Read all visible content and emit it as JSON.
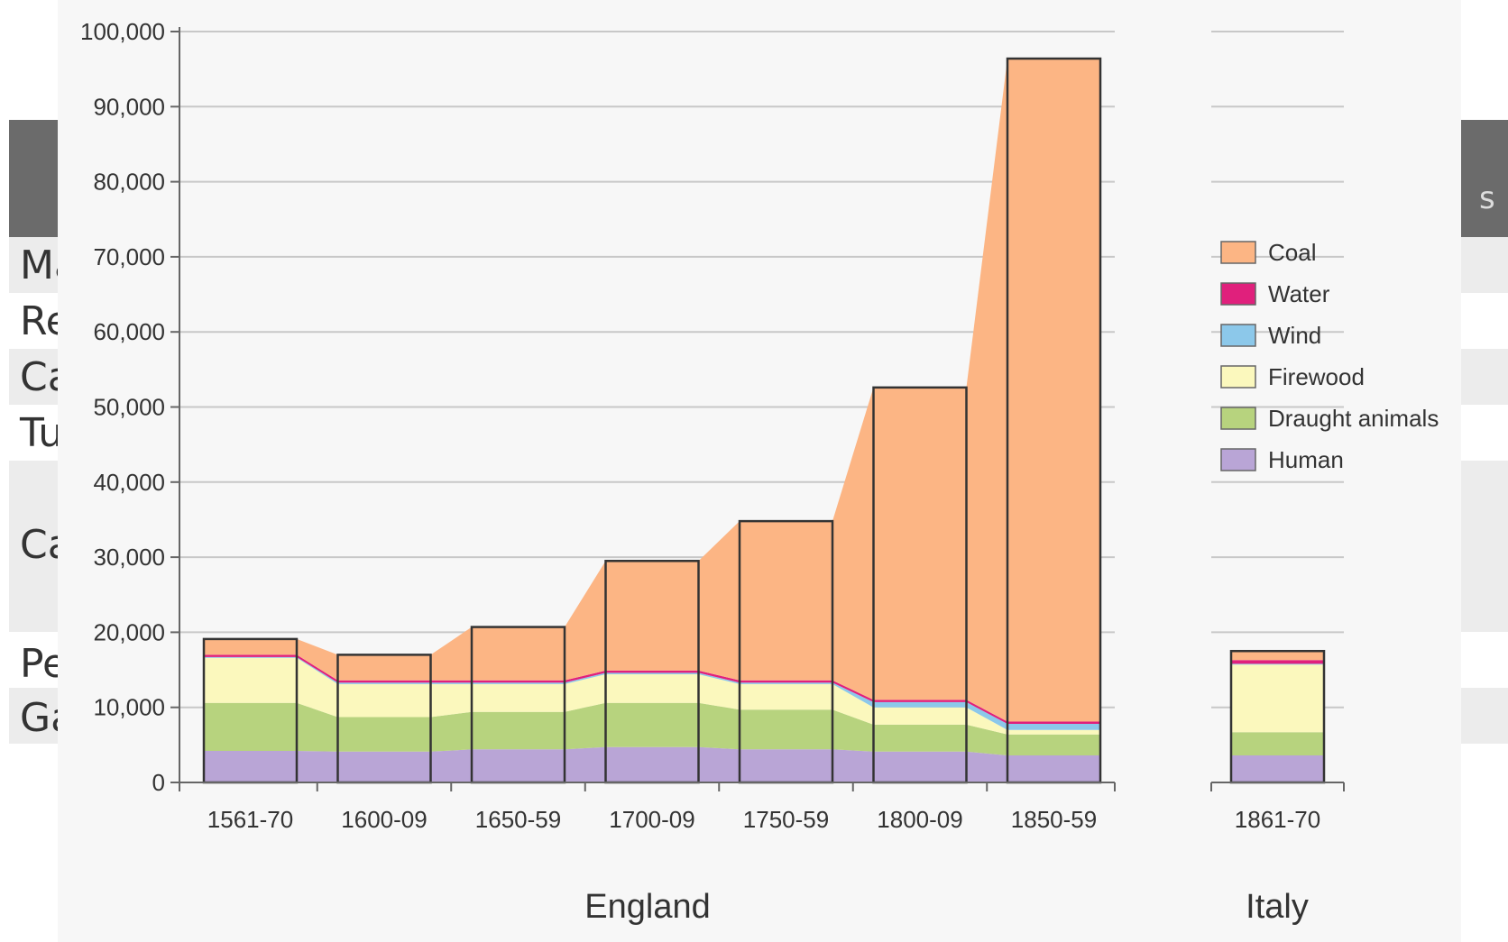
{
  "background_table": {
    "row_labels": [
      "Ma",
      "Re",
      "Ca",
      "Tu",
      "Ca",
      "Pe",
      "Ga"
    ],
    "header_fragment": "s"
  },
  "chart_data": {
    "type": "area",
    "title": "",
    "xlabel": "",
    "ylabel": "",
    "ylim": [
      0,
      100000
    ],
    "y_ticks": [
      0,
      10000,
      20000,
      30000,
      40000,
      50000,
      60000,
      70000,
      80000,
      90000,
      100000
    ],
    "y_tick_labels": [
      "0",
      "10,000",
      "20,000",
      "30,000",
      "40,000",
      "50,000",
      "60,000",
      "70,000",
      "80,000",
      "90,000",
      "100,000"
    ],
    "grid": true,
    "legend_position": "right",
    "legend_order": [
      "Coal",
      "Water",
      "Wind",
      "Firewood",
      "Draught animals",
      "Human"
    ],
    "series_colors": {
      "Human": "#b9a5d6",
      "Draught animals": "#b7d37e",
      "Firewood": "#fbf8bd",
      "Wind": "#8cc8ea",
      "Water": "#e0207c",
      "Coal": "#fcb584"
    },
    "groups": [
      {
        "label": "England",
        "categories": [
          "1561-70",
          "1600-09",
          "1650-59",
          "1700-09",
          "1750-59",
          "1800-09",
          "1850-59"
        ],
        "series": [
          {
            "name": "Human",
            "values": [
              4200,
              4100,
              4400,
              4700,
              4400,
              4100,
              3600
            ]
          },
          {
            "name": "Draught animals",
            "values": [
              6400,
              4600,
              5000,
              5900,
              5300,
              3600,
              2800
            ]
          },
          {
            "name": "Firewood",
            "values": [
              6000,
              4400,
              3700,
              3800,
              3400,
              2300,
              600
            ]
          },
          {
            "name": "Wind",
            "values": [
              100,
              200,
              200,
              200,
              200,
              700,
              800
            ]
          },
          {
            "name": "Water",
            "values": [
              300,
              300,
              300,
              300,
              300,
              300,
              300
            ]
          },
          {
            "name": "Coal",
            "values": [
              2100,
              3400,
              7100,
              14600,
              21200,
              41600,
              88300
            ]
          }
        ]
      },
      {
        "label": "Italy",
        "categories": [
          "1861-70"
        ],
        "series": [
          {
            "name": "Human",
            "values": [
              3600
            ]
          },
          {
            "name": "Draught animals",
            "values": [
              3100
            ]
          },
          {
            "name": "Firewood",
            "values": [
              9000
            ]
          },
          {
            "name": "Wind",
            "values": [
              100
            ]
          },
          {
            "name": "Water",
            "values": [
              500
            ]
          },
          {
            "name": "Coal",
            "values": [
              1200
            ]
          }
        ]
      }
    ]
  }
}
